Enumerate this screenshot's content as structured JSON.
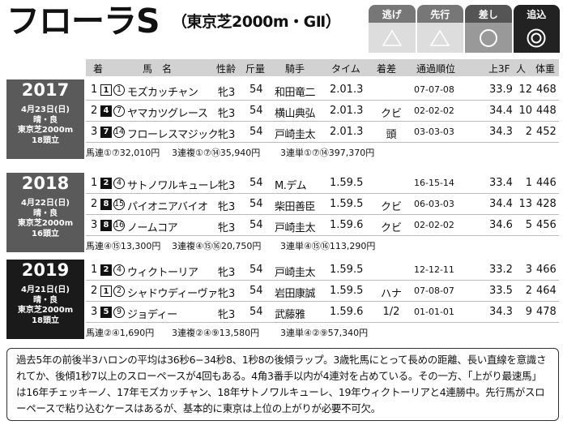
{
  "title": {
    "main": "フローラS",
    "sub": "（東京芝2000m・GⅡ）"
  },
  "styles": [
    {
      "label": "逃げ",
      "symbol": "triangle-icon"
    },
    {
      "label": "先行",
      "symbol": "triangle-icon"
    },
    {
      "label": "差し",
      "symbol": "circle-icon"
    },
    {
      "label": "追込",
      "symbol": "double-circle-icon"
    }
  ],
  "colors": {
    "y2017": "#5a5a5a",
    "y2018": "#5a5a5a",
    "y2019": "#1a1a1a",
    "header": "#d2d2d2"
  },
  "headers": [
    "着",
    "馬　名",
    "性齢",
    "斤量",
    "騎手",
    "タイム",
    "着差",
    "通過順位",
    "上3F",
    "人",
    "体重"
  ],
  "years": [
    {
      "year": "2017",
      "info": [
        "4月23日(日)",
        "晴・良",
        "東京芝2000m",
        "18頭立"
      ],
      "rows": [
        {
          "rank": "1",
          "waku": "1",
          "num": "1",
          "name": "モズカッチャン",
          "sex": "牝3",
          "wt": "54",
          "jockey": "和田竜二",
          "time": "2.01.3",
          "margin": "",
          "pass": "07-07-08",
          "f3": "33.9",
          "pop": "12",
          "bw": "468"
        },
        {
          "rank": "2",
          "waku": "4",
          "num": "7",
          "name": "ヤマカツグレース",
          "sex": "牝3",
          "wt": "54",
          "jockey": "横山典弘",
          "time": "2.01.3",
          "margin": "クビ",
          "pass": "02-02-02",
          "f3": "34.4",
          "pop": "10",
          "bw": "448"
        },
        {
          "rank": "3",
          "waku": "7",
          "num": "14",
          "name": "フローレスマジック",
          "sex": "牝3",
          "wt": "54",
          "jockey": "戸崎圭太",
          "time": "2.01.3",
          "margin": "頭",
          "pass": "03-03-03",
          "f3": "34.3",
          "pop": "2",
          "bw": "452"
        }
      ],
      "pay": [
        "馬連①⑦32,010円",
        "3連複①⑦⑭35,940円",
        "3連単①⑦⑭397,370円"
      ]
    },
    {
      "year": "2018",
      "info": [
        "4月22日(日)",
        "晴・良",
        "東京芝2000m",
        "16頭立"
      ],
      "rows": [
        {
          "rank": "1",
          "waku": "2",
          "num": "4",
          "name": "サトノワルキューレ",
          "sex": "牝3",
          "wt": "54",
          "jockey": "M.デム",
          "time": "1.59.5",
          "margin": "",
          "pass": "16-15-14",
          "f3": "33.4",
          "pop": "1",
          "bw": "446"
        },
        {
          "rank": "2",
          "waku": "8",
          "num": "15",
          "name": "パイオニアバイオ",
          "sex": "牝3",
          "wt": "54",
          "jockey": "柴田善臣",
          "time": "1.59.5",
          "margin": "クビ",
          "pass": "06-03-03",
          "f3": "34.4",
          "pop": "13",
          "bw": "428"
        },
        {
          "rank": "3",
          "waku": "8",
          "num": "16",
          "name": "ノームコア",
          "sex": "牝3",
          "wt": "54",
          "jockey": "戸崎圭太",
          "time": "1.59.6",
          "margin": "クビ",
          "pass": "02-02-02",
          "f3": "34.6",
          "pop": "5",
          "bw": "456"
        }
      ],
      "pay": [
        "馬連④⑮13,300円",
        "3連複④⑮⑯20,750円",
        "3連単④⑮⑯113,290円"
      ]
    },
    {
      "year": "2019",
      "info": [
        "4月21日(日)",
        "晴・良",
        "東京芝2000m",
        "18頭立"
      ],
      "rows": [
        {
          "rank": "1",
          "waku": "2",
          "num": "4",
          "name": "ウィクトーリア",
          "sex": "牝3",
          "wt": "54",
          "jockey": "戸崎圭太",
          "time": "1.59.5",
          "margin": "",
          "pass": "12-12-11",
          "f3": "33.2",
          "pop": "3",
          "bw": "466"
        },
        {
          "rank": "2",
          "waku": "1",
          "num": "2",
          "name": "シャドウディーヴァ",
          "sex": "牝3",
          "wt": "54",
          "jockey": "岩田康誠",
          "time": "1.59.5",
          "margin": "ハナ",
          "pass": "07-08-07",
          "f3": "33.5",
          "pop": "2",
          "bw": "464"
        },
        {
          "rank": "3",
          "waku": "5",
          "num": "9",
          "name": "ジョディー",
          "sex": "牝3",
          "wt": "54",
          "jockey": "武藤雅",
          "time": "1.59.6",
          "margin": "1/2",
          "pass": "01-01-01",
          "f3": "34.3",
          "pop": "9",
          "bw": "478"
        }
      ],
      "pay": [
        "馬連②④1,690円",
        "3連複②④⑨13,580円",
        "3連単④②⑨57,340円"
      ]
    }
  ],
  "summary": "過去5年の前後半3ハロンの平均は36秒6−34秒8、1秒8の後傾ラップ。3歳牝馬にとって長めの距離、長い直線を意識されてか、後傾1秒7以上のスローペースが4回もある。4角3番手以内が4連対を占めている。その一方、「上がり最速馬」は16年チェッキーノ、17年モズカッチャン、18年サトノワルキューレ、19年ウィクトーリアと4連勝中。先行馬がスローペースで粘り込むケースはあるが、基本的に東京は上位の上がりが必要不可欠。"
}
